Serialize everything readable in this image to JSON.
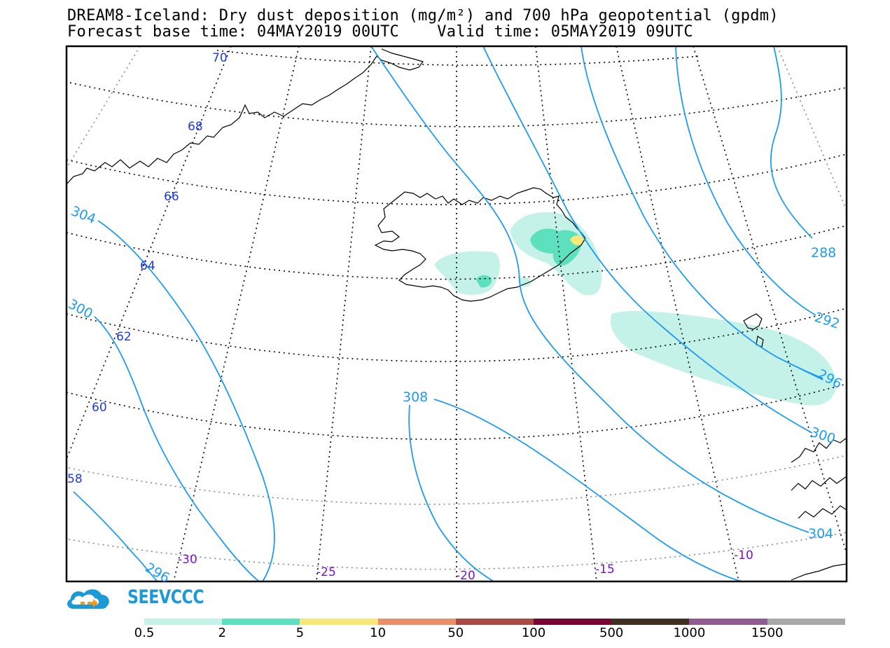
{
  "title": {
    "line1": "DREAM8-Iceland: Dry dust deposition (mg/m²) and 700 hPa geopotential (gpdm)",
    "line2": "Forecast base time: 04MAY2019 00UTC    Valid time: 05MAY2019 09UTC"
  },
  "map": {
    "lat_labels": [
      "70",
      "68",
      "66",
      "64",
      "62",
      "60",
      "58"
    ],
    "lon_labels": [
      "-30",
      "-25",
      "-20",
      "-15",
      "-10"
    ],
    "geopotential_labels": [
      "304",
      "300",
      "296",
      "308",
      "288",
      "292",
      "296",
      "300",
      "304"
    ],
    "colors": {
      "graticule": "#000000",
      "geopotential_contour": "#1f9cf0",
      "coastline": "#000000",
      "lat_label": "#1e3ae0",
      "lon_label": "#7a14c8"
    }
  },
  "logo": {
    "text": "SEEVCCC",
    "icon": "cloud-arrow-icon"
  },
  "colorbar": {
    "labels": [
      "0.5",
      "2",
      "5",
      "10",
      "50",
      "100",
      "500",
      "1000",
      "1500"
    ],
    "colors": [
      "#c4f2e8",
      "#5de0bd",
      "#f8e87a",
      "#eb8f6a",
      "#aa4a45",
      "#7a0530",
      "#403020",
      "#905a92",
      "#a8a8a8"
    ]
  }
}
